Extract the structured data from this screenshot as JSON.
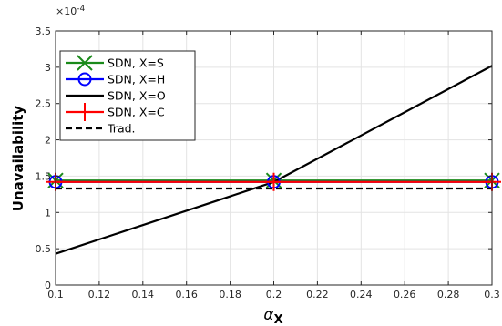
{
  "chart_data": {
    "type": "line",
    "xlabel_symbol": "α",
    "xlabel_subscript": "X",
    "ylabel": "Unavailability",
    "y_exponent_base": "×10",
    "y_exponent_power": "-4",
    "xlim": [
      0.1,
      0.3
    ],
    "ylim": [
      0,
      3.5
    ],
    "x_ticks": [
      0.1,
      0.12,
      0.14,
      0.16,
      0.18,
      0.2,
      0.22,
      0.24,
      0.26,
      0.28,
      0.3
    ],
    "x_tick_labels": [
      "0.1",
      "0.12",
      "0.14",
      "0.16",
      "0.18",
      "0.2",
      "0.22",
      "0.24",
      "0.26",
      "0.28",
      "0.3"
    ],
    "y_ticks": [
      0,
      0.5,
      1,
      1.5,
      2,
      2.5,
      3,
      3.5
    ],
    "y_tick_labels": [
      "0",
      "0.5",
      "1",
      "1.5",
      "2",
      "2.5",
      "3",
      "3.5"
    ],
    "grid": true,
    "legend_position": "top-left",
    "series": [
      {
        "name": "SDN, X=S",
        "x": [
          0.1,
          0.2,
          0.3
        ],
        "values": [
          1.44,
          1.44,
          1.44
        ],
        "color": "#1a8a1a",
        "marker": "x",
        "dash": "solid"
      },
      {
        "name": "SDN, X=H",
        "x": [
          0.1,
          0.2,
          0.3
        ],
        "values": [
          1.42,
          1.42,
          1.42
        ],
        "color": "#0000ff",
        "marker": "o",
        "dash": "solid"
      },
      {
        "name": "SDN, X=O",
        "x": [
          0.1,
          0.2,
          0.3
        ],
        "values": [
          0.43,
          1.42,
          3.02
        ],
        "color": "#000000",
        "marker": "none",
        "dash": "solid"
      },
      {
        "name": "SDN, X=C",
        "x": [
          0.1,
          0.2,
          0.3
        ],
        "values": [
          1.42,
          1.42,
          1.42
        ],
        "color": "#ff0000",
        "marker": "+",
        "dash": "solid"
      },
      {
        "name": "Trad.",
        "x": [
          0.1,
          0.3
        ],
        "values": [
          1.33,
          1.33
        ],
        "color": "#000000",
        "marker": "none",
        "dash": "dashed"
      }
    ]
  }
}
